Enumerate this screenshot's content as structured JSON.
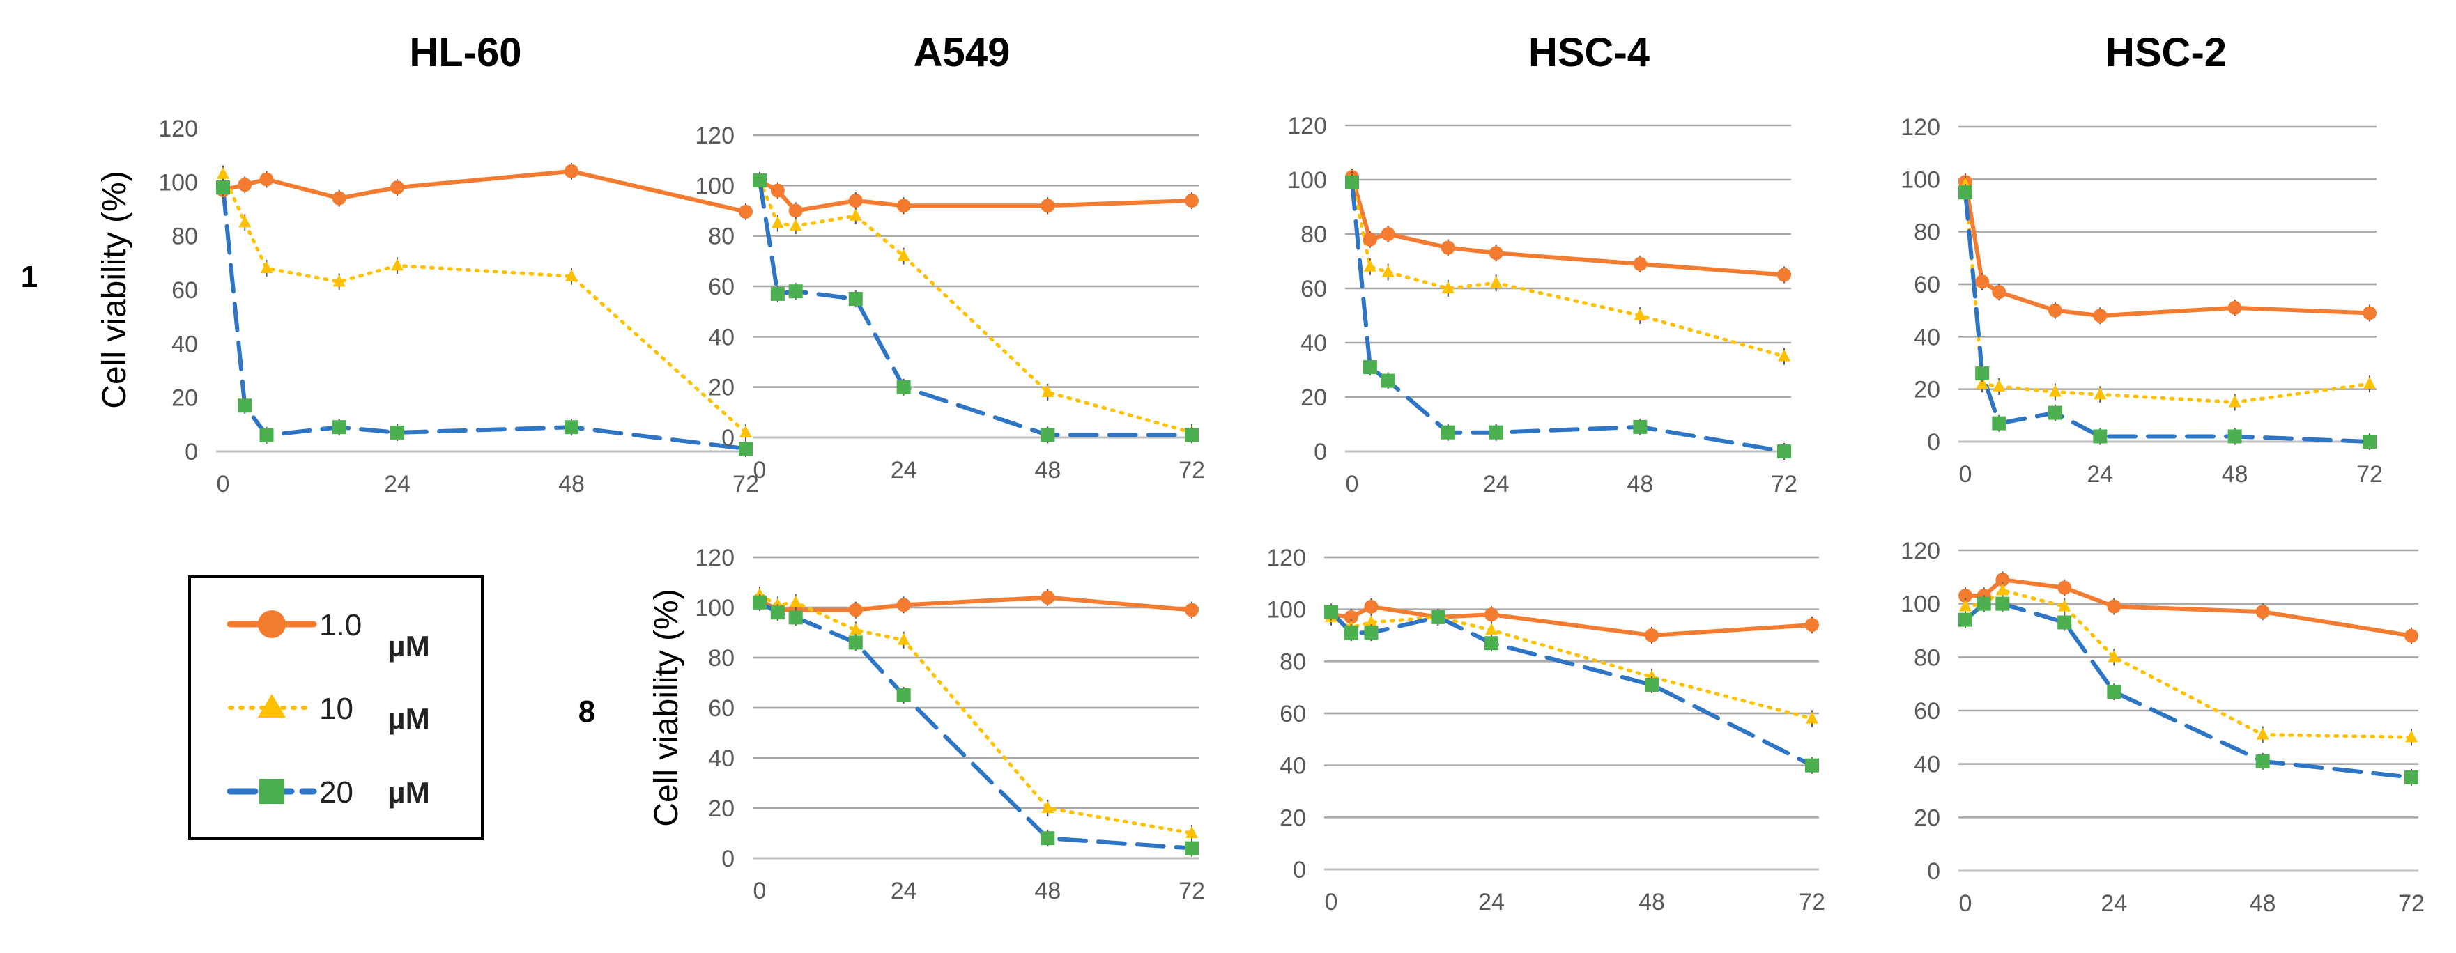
{
  "figure": {
    "y_axis_label": "Cell viability (%)",
    "row_labels": [
      "1",
      "8"
    ]
  },
  "legend": {
    "items": [
      {
        "value": "1.0",
        "unit": "μM",
        "color": "#F47C30",
        "marker": "circle",
        "dash": "solid"
      },
      {
        "value": "10",
        "unit": "μM",
        "color": "#FFC000",
        "marker": "triangle",
        "dash": "dotted"
      },
      {
        "value": "20",
        "unit": "μM",
        "color": "#2E75C6",
        "marker": "square",
        "marker_color": "#4CAF50",
        "dash": "dashed"
      }
    ]
  },
  "chart_data": [
    {
      "type": "line",
      "row": "1",
      "title": "HL-60",
      "x": [
        0,
        3,
        6,
        16,
        24,
        48,
        72
      ],
      "xticks": [
        0,
        24,
        48,
        72
      ],
      "ylim": [
        0,
        120
      ],
      "yticks": [
        0,
        20,
        40,
        60,
        80,
        100,
        120
      ],
      "ylabel": "Cell viability (%)",
      "grid": false,
      "series": [
        {
          "name": "1.0 μM",
          "values": [
            97,
            99,
            101,
            94,
            98,
            104,
            89
          ]
        },
        {
          "name": "10 μM",
          "values": [
            103,
            85,
            68,
            63,
            69,
            65,
            7
          ]
        },
        {
          "name": "20 μM",
          "values": [
            98,
            17,
            6,
            9,
            7,
            9,
            1
          ]
        }
      ]
    },
    {
      "type": "line",
      "row": "1",
      "title": "A549",
      "x": [
        0,
        3,
        6,
        16,
        24,
        48,
        72
      ],
      "xticks": [
        0,
        24,
        48,
        72
      ],
      "ylim": [
        0,
        120
      ],
      "yticks": [
        0,
        20,
        40,
        60,
        80,
        100,
        120
      ],
      "ylabel": "",
      "grid": true,
      "series": [
        {
          "name": "1.0 μM",
          "values": [
            102,
            98,
            90,
            94,
            92,
            92,
            94
          ]
        },
        {
          "name": "10 μM",
          "values": [
            102,
            85,
            84,
            88,
            72,
            18,
            2
          ]
        },
        {
          "name": "20 μM",
          "values": [
            102,
            57,
            58,
            55,
            20,
            1,
            1
          ]
        }
      ]
    },
    {
      "type": "line",
      "row": "1",
      "title": "HSC-4",
      "x": [
        0,
        3,
        6,
        16,
        24,
        48,
        72
      ],
      "xticks": [
        0,
        24,
        48,
        72
      ],
      "ylim": [
        0,
        120
      ],
      "yticks": [
        0,
        20,
        40,
        60,
        80,
        100,
        120
      ],
      "ylabel": "",
      "grid": true,
      "series": [
        {
          "name": "1.0 μM",
          "values": [
            101,
            78,
            80,
            75,
            73,
            69,
            65
          ]
        },
        {
          "name": "10 μM",
          "values": [
            100,
            68,
            66,
            60,
            62,
            50,
            35
          ]
        },
        {
          "name": "20 μM",
          "values": [
            99,
            31,
            26,
            7,
            7,
            9,
            0
          ]
        }
      ]
    },
    {
      "type": "line",
      "row": "1",
      "title": "HSC-2",
      "x": [
        0,
        3,
        6,
        16,
        24,
        48,
        72
      ],
      "xticks": [
        0,
        24,
        48,
        72
      ],
      "ylim": [
        0,
        120
      ],
      "yticks": [
        0,
        20,
        40,
        60,
        80,
        100,
        120
      ],
      "ylabel": "",
      "grid": true,
      "series": [
        {
          "name": "1.0 μM",
          "values": [
            99,
            61,
            57,
            50,
            48,
            51,
            49
          ]
        },
        {
          "name": "10 μM",
          "values": [
            98,
            22,
            21,
            19,
            18,
            15,
            22
          ]
        },
        {
          "name": "20 μM",
          "values": [
            95,
            26,
            7,
            11,
            2,
            2,
            0
          ]
        }
      ]
    },
    {
      "type": "line",
      "row": "8",
      "title": "A549",
      "x": [
        0,
        3,
        6,
        16,
        24,
        48,
        72
      ],
      "xticks": [
        0,
        24,
        48,
        72
      ],
      "ylim": [
        0,
        120
      ],
      "yticks": [
        0,
        20,
        40,
        60,
        80,
        100,
        120
      ],
      "ylabel": "Cell viability (%)",
      "grid": true,
      "series": [
        {
          "name": "1.0 μM",
          "values": [
            103,
            99,
            99,
            99,
            101,
            104,
            99
          ]
        },
        {
          "name": "10 μM",
          "values": [
            105,
            101,
            102,
            91,
            87,
            20,
            10
          ]
        },
        {
          "name": "20 μM",
          "values": [
            102,
            98,
            96,
            86,
            65,
            8,
            4
          ]
        }
      ]
    },
    {
      "type": "line",
      "row": "8",
      "title": "HSC-4",
      "x": [
        0,
        3,
        6,
        16,
        24,
        48,
        72
      ],
      "xticks": [
        0,
        24,
        48,
        72
      ],
      "ylim": [
        0,
        120
      ],
      "yticks": [
        0,
        20,
        40,
        60,
        80,
        100,
        120
      ],
      "ylabel": "",
      "grid": true,
      "series": [
        {
          "name": "1.0 μM",
          "values": [
            98,
            97,
            101,
            97,
            98,
            90,
            94
          ]
        },
        {
          "name": "10 μM",
          "values": [
            97,
            93,
            95,
            97,
            92,
            74,
            58
          ]
        },
        {
          "name": "20 μM",
          "values": [
            99,
            91,
            91,
            97,
            87,
            71,
            40
          ]
        }
      ]
    },
    {
      "type": "line",
      "row": "8",
      "title": "HSC-2",
      "x": [
        0,
        3,
        6,
        16,
        24,
        48,
        72
      ],
      "xticks": [
        0,
        24,
        48,
        72
      ],
      "ylim": [
        0,
        120
      ],
      "yticks": [
        0,
        20,
        40,
        60,
        80,
        100,
        120
      ],
      "ylabel": "",
      "grid": true,
      "series": [
        {
          "name": "1.0 μM",
          "values": [
            103,
            103,
            109,
            106,
            99,
            97,
            88
          ]
        },
        {
          "name": "10 μM",
          "values": [
            99,
            100,
            105,
            99,
            80,
            51,
            50
          ]
        },
        {
          "name": "20 μM",
          "values": [
            94,
            100,
            100,
            93,
            67,
            41,
            35
          ]
        }
      ]
    }
  ]
}
